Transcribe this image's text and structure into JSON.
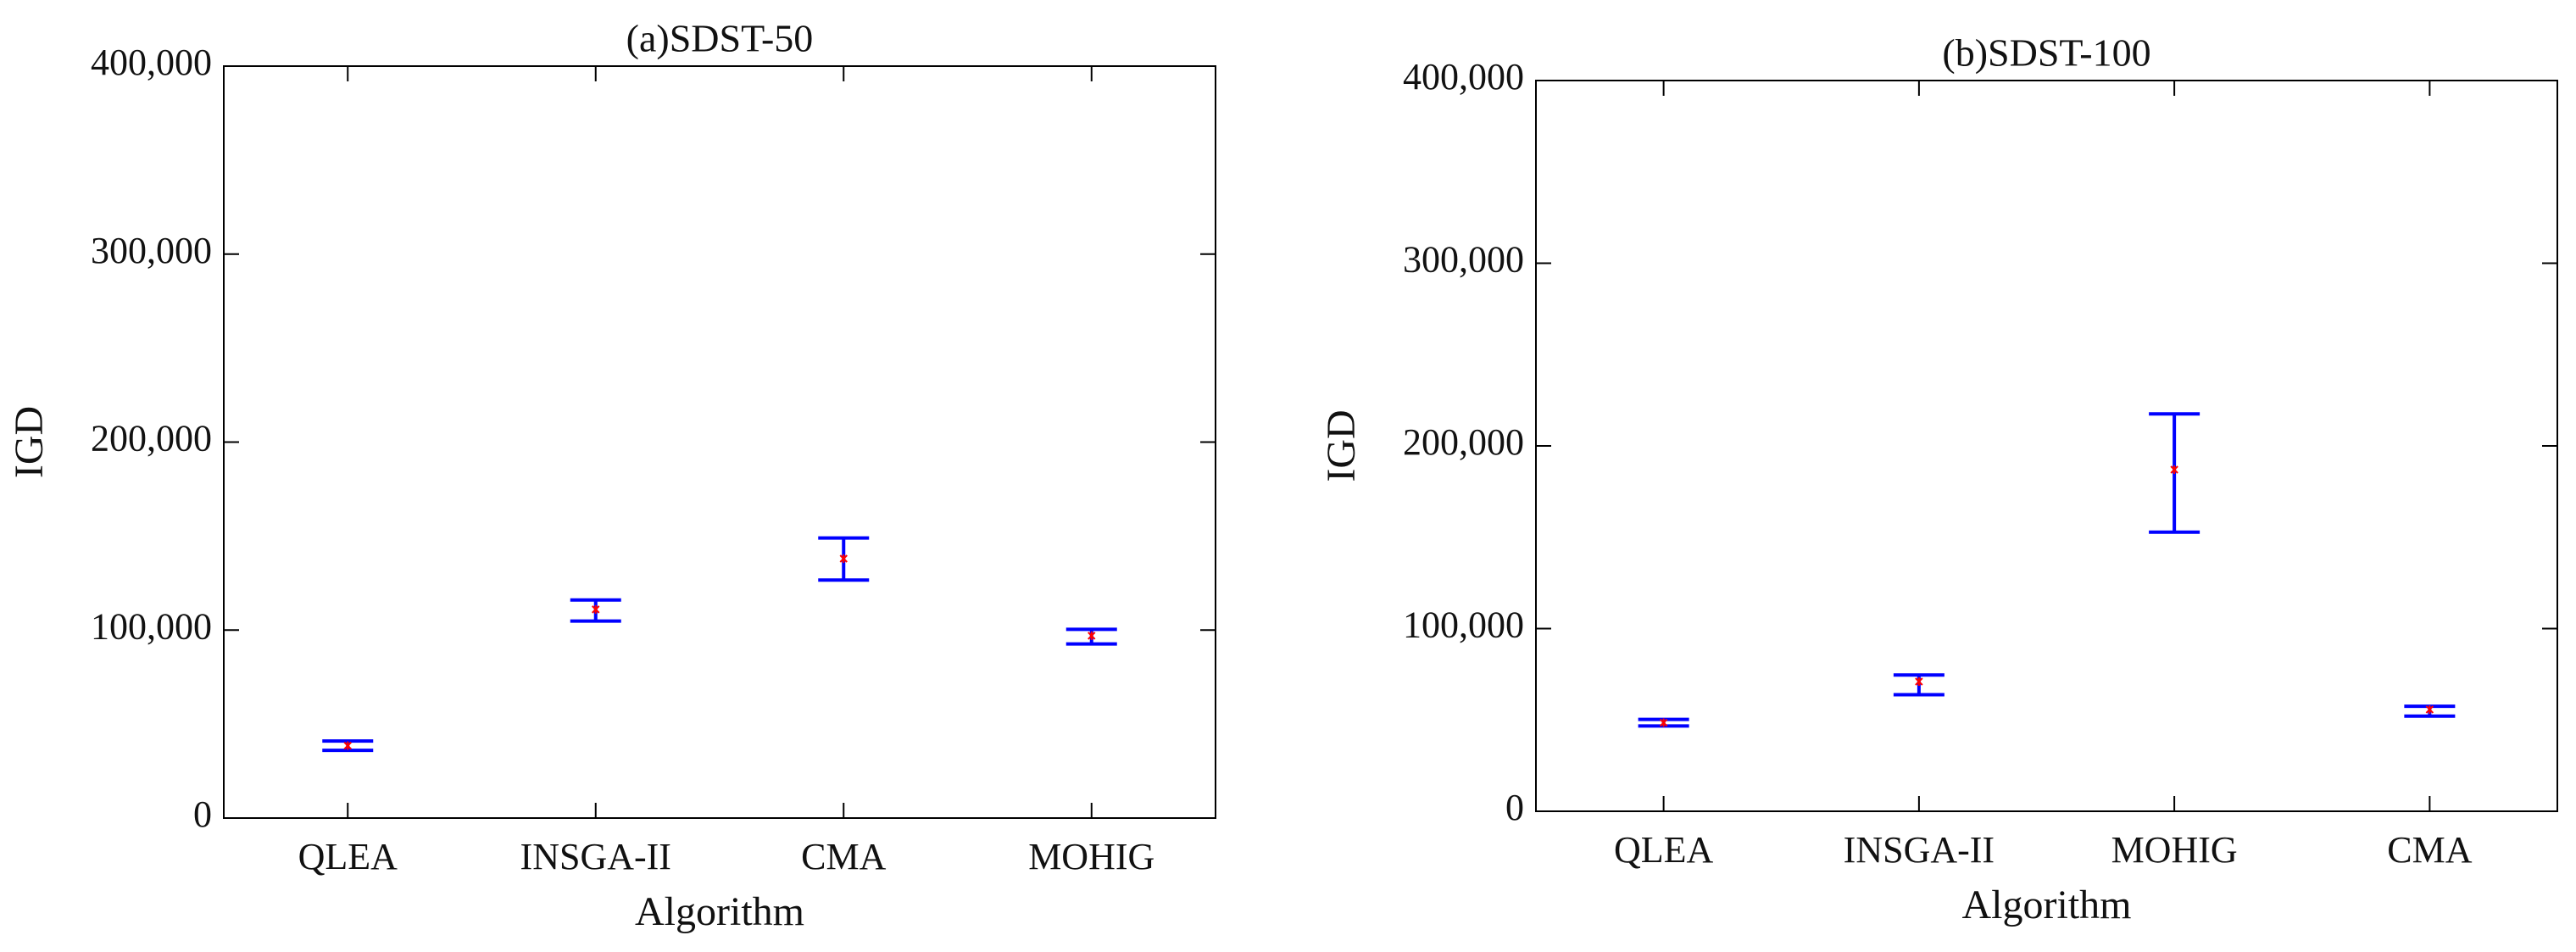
{
  "chart_data": [
    {
      "type": "errorbar",
      "title": "(a)SDST-50",
      "xlabel": "Algorithm",
      "ylabel": "IGD",
      "categories": [
        "QLEA",
        "INSGA-II",
        "CMA",
        "MOHIG"
      ],
      "series": [
        {
          "color": "#0000ff",
          "mean_color": "#ff0000",
          "values": [
            38500,
            111000,
            138000,
            97000
          ],
          "lower": [
            36000,
            104800,
            126600,
            92600
          ],
          "upper": [
            41000,
            116000,
            149000,
            100400
          ]
        }
      ],
      "ylim": [
        0,
        400000
      ],
      "yticks": [
        0,
        {
          "value": 100000,
          "label": "100,000"
        },
        {
          "value": 200000,
          "label": "200,000"
        },
        {
          "value": 300000,
          "label": "300,000"
        },
        {
          "value": 400000,
          "label": "400,000"
        }
      ]
    },
    {
      "type": "errorbar",
      "title": "(b)SDST-100",
      "xlabel": "Algorithm",
      "ylabel": "IGD",
      "categories": [
        "QLEA",
        "INSGA-II",
        "MOHIG",
        "CMA"
      ],
      "series": [
        {
          "color": "#0000ff",
          "mean_color": "#ff0000",
          "values": [
            48500,
            71000,
            187000,
            55700
          ],
          "lower": [
            46700,
            63800,
            152800,
            52100
          ],
          "upper": [
            50300,
            74600,
            217500,
            57500
          ]
        }
      ],
      "ylim": [
        0,
        400000
      ],
      "yticks": [
        0,
        {
          "value": 100000,
          "label": "100,000"
        },
        {
          "value": 200000,
          "label": "200,000"
        },
        {
          "value": 300000,
          "label": "300,000"
        },
        {
          "value": 400000,
          "label": "400,000"
        }
      ]
    }
  ]
}
